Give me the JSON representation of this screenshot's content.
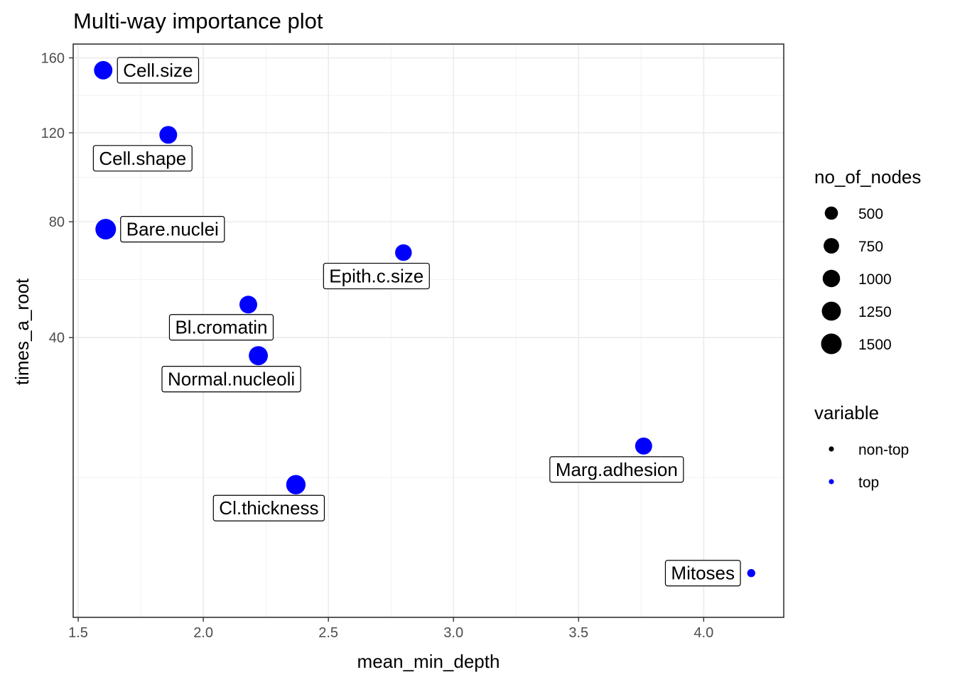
{
  "chart_data": {
    "type": "scatter",
    "title": "Multi-way importance plot",
    "xlabel": "mean_min_depth",
    "ylabel": "times_a_root",
    "xlim": [
      1.48,
      4.32
    ],
    "x_ticks": [
      1.5,
      2.0,
      2.5,
      3.0,
      3.5,
      4.0
    ],
    "x_tick_labels": [
      "1.5",
      "2.0",
      "2.5",
      "3.0",
      "3.5",
      "4.0"
    ],
    "y_scale": "sqrt",
    "ylim": [
      0,
      168
    ],
    "y_ticks": [
      40,
      80,
      120,
      160
    ],
    "y_tick_labels": [
      "40",
      "80",
      "120",
      "160"
    ],
    "grid": true,
    "points": [
      {
        "label": "Cell.size",
        "x": 1.6,
        "y": 153,
        "nodes": 1150,
        "variable": "top"
      },
      {
        "label": "Cell.shape",
        "x": 1.86,
        "y": 119,
        "nodes": 1050,
        "variable": "top"
      },
      {
        "label": "Bare.nuclei",
        "x": 1.61,
        "y": 77,
        "nodes": 1500,
        "variable": "top"
      },
      {
        "label": "Epith.c.size",
        "x": 2.8,
        "y": 68,
        "nodes": 900,
        "variable": "top"
      },
      {
        "label": "Bl.cromatin",
        "x": 2.18,
        "y": 50,
        "nodes": 1050,
        "variable": "top"
      },
      {
        "label": "Normal.nucleoli",
        "x": 2.22,
        "y": 35,
        "nodes": 1250,
        "variable": "top"
      },
      {
        "label": "Marg.adhesion",
        "x": 3.76,
        "y": 15,
        "nodes": 950,
        "variable": "top"
      },
      {
        "label": "Cl.thickness",
        "x": 2.37,
        "y": 9,
        "nodes": 1300,
        "variable": "top"
      },
      {
        "label": "Mitoses",
        "x": 4.19,
        "y": 1,
        "nodes": 120,
        "variable": "top"
      }
    ],
    "legend": {
      "placement": "right",
      "size_title": "no_of_nodes",
      "size_entries": [
        {
          "label": "500",
          "value": 500
        },
        {
          "label": "750",
          "value": 750
        },
        {
          "label": "1000",
          "value": 1000
        },
        {
          "label": "1250",
          "value": 1250
        },
        {
          "label": "1500",
          "value": 1500
        }
      ],
      "color_title": "variable",
      "color_entries": [
        {
          "label": "non-top",
          "color": "#000000"
        },
        {
          "label": "top",
          "color": "#0000ff"
        }
      ]
    },
    "colors": {
      "top": "#0000ff",
      "non-top": "#000000"
    }
  }
}
